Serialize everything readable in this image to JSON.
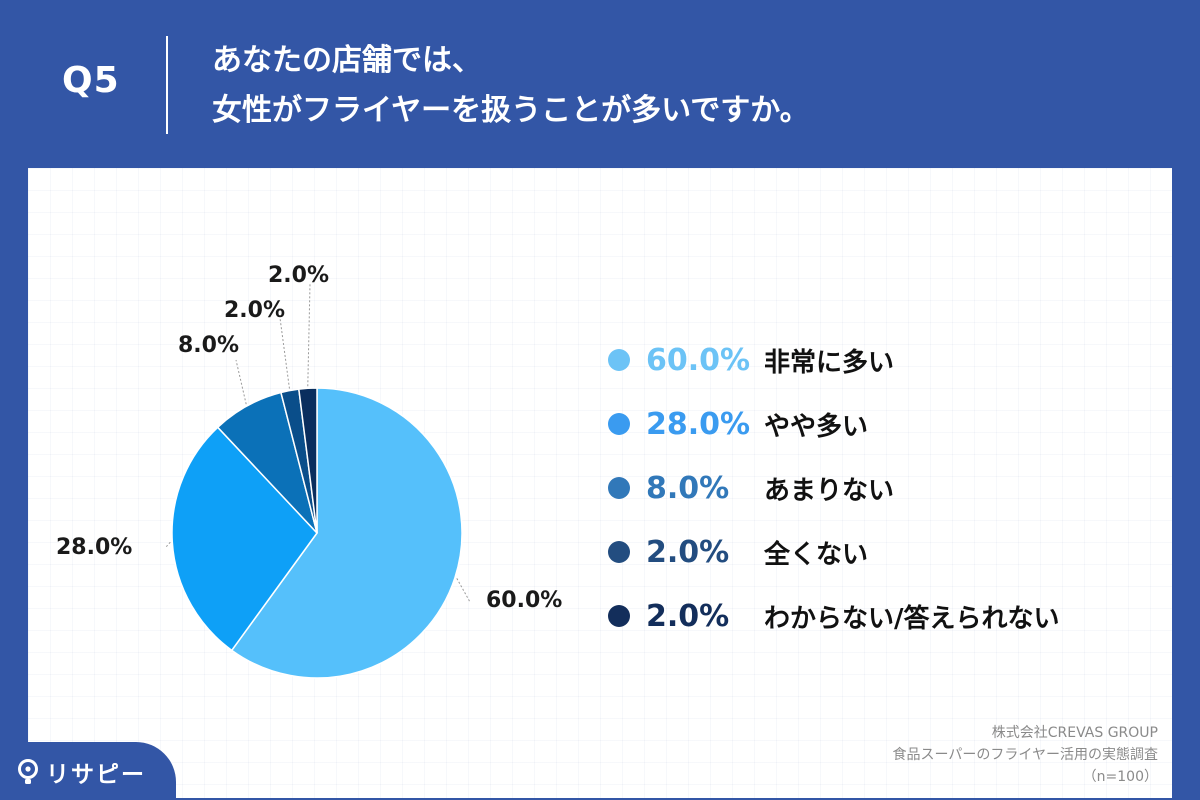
{
  "header": {
    "q_label": "Q5",
    "question_line1": "あなたの店舗では、",
    "question_line2": "女性がフライヤーを扱うことが多いですか。"
  },
  "chart_data": {
    "type": "pie",
    "title": "",
    "slices": [
      {
        "label": "非常に多い",
        "pct_text": "60.0%",
        "value": 60.0,
        "color": "#55c0fb"
      },
      {
        "label": "やや多い",
        "pct_text": "28.0%",
        "value": 28.0,
        "color": "#0ea0f7"
      },
      {
        "label": "あまりない",
        "pct_text": "8.0%",
        "value": 8.0,
        "color": "#0b71b8"
      },
      {
        "label": "全くない",
        "pct_text": "2.0%",
        "value": 2.0,
        "color": "#0a4e8a"
      },
      {
        "label": "わからない/答えられない",
        "pct_text": "2.0%",
        "value": 2.0,
        "color": "#0a2e5e"
      }
    ],
    "legend_placement": "right",
    "legend_dot_colors": [
      "#6cc3f6",
      "#3a9bf0",
      "#3178b9",
      "#234d80",
      "#132e5b"
    ],
    "legend_text_colors": [
      "#6cc3f6",
      "#3a9bf0",
      "#3178b9",
      "#234d80",
      "#132e5b"
    ]
  },
  "source": {
    "line1": "株式会社CREVAS GROUP",
    "line2": "食品スーパーのフライヤー活用の実態調査",
    "line3": "（n=100）"
  },
  "logo": {
    "text": "リサピー",
    "icon": "lightbulb-icon"
  },
  "colors": {
    "brand_blue": "#3356a6",
    "panel": "#ffffff"
  }
}
